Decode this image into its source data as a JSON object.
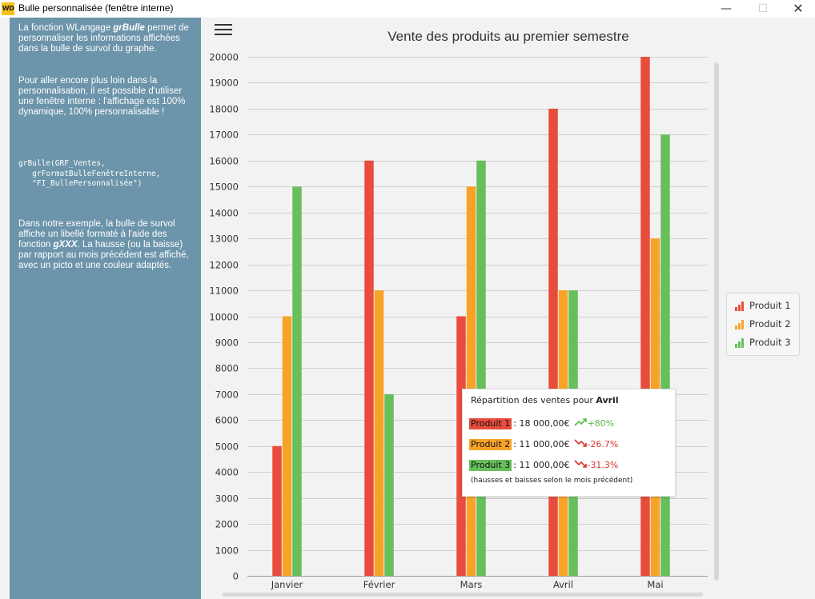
{
  "window": {
    "title": "Bulle personnalisée (fenêtre interne)",
    "icon_text": "WD",
    "min_label": "—",
    "max_label": "☐",
    "close_label": "✕"
  },
  "sidebar": {
    "para1_prefix": "La fonction WLangage ",
    "para1_fn": "grBulle",
    "para1_rest": " permet de personnaliser les informations affichées dans la bulle de survol du graphe.",
    "para2": "Pour aller encore plus loin dans la personnalisation, il est possible d'utiliser une fenêtre interne : l'affichage est 100% dynamique, 100% personnalisable !",
    "code": "grBulle(GRF_Ventes,\n   grFormatBulleFenêtreInterne,\n   \"FI_BullePersonnalisée\")",
    "para3_prefix": "Dans notre exemple, la bulle de survol affiche un libellé formaté à l'aide des fonction ",
    "para3_fn": "gXXX",
    "para3_rest": ". La hausse (ou la baisse) par rapport au mois précédent est affiché, avec un picto et une couleur adaptés."
  },
  "chart_data": {
    "type": "bar",
    "title": "Vente des produits au premier semestre",
    "categories": [
      "Janvier",
      "Février",
      "Mars",
      "Avril",
      "Mai"
    ],
    "series": [
      {
        "name": "Produit 1",
        "color": "#e84c3d",
        "values": [
          5000,
          16000,
          10000,
          18000,
          20000
        ]
      },
      {
        "name": "Produit 2",
        "color": "#f7a327",
        "values": [
          10000,
          11000,
          15000,
          11000,
          13000
        ]
      },
      {
        "name": "Produit 3",
        "color": "#67bf5c",
        "values": [
          15000,
          7000,
          16000,
          11000,
          17000
        ]
      }
    ],
    "ylim": [
      0,
      20000
    ],
    "yticks": [
      0,
      1000,
      2000,
      3000,
      4000,
      5000,
      6000,
      7000,
      8000,
      9000,
      10000,
      11000,
      12000,
      13000,
      14000,
      15000,
      16000,
      17000,
      18000,
      19000,
      20000
    ],
    "grid": true,
    "legend_position": "right"
  },
  "tooltip": {
    "title_prefix": "Répartition des ventes pour ",
    "month": "Avril",
    "rows": [
      {
        "label": "Produit 1",
        "value": ": 18 000,00€",
        "trend": "+80%",
        "direction": "up",
        "color": "#e84c3d"
      },
      {
        "label": "Produit 2",
        "value": ": 11 000,00€",
        "trend": "-26.7%",
        "direction": "down",
        "color": "#f7a327"
      },
      {
        "label": "Produit 3",
        "value": ": 11 000,00€",
        "trend": "-31.3%",
        "direction": "down",
        "color": "#67bf5c"
      }
    ],
    "note": "(hausses et baisses selon le mois précédent)",
    "up_color": "#5cb848",
    "down_color": "#d9362b"
  }
}
